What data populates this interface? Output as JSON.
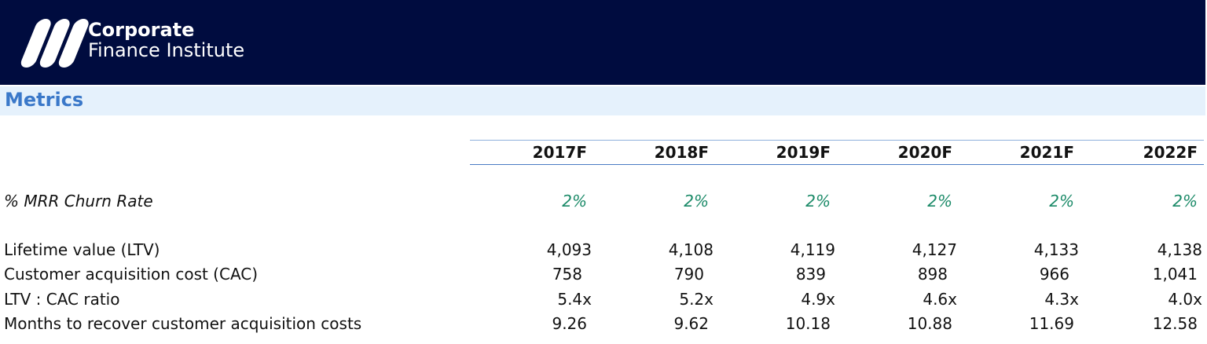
{
  "header": {
    "logo_line1": "Corporate",
    "logo_line2": "Finance Institute"
  },
  "section_title": "Metrics",
  "table": {
    "columns": [
      "2017F",
      "2018F",
      "2019F",
      "2020F",
      "2021F",
      "2022F"
    ],
    "rows": [
      {
        "label": "% MRR Churn Rate",
        "values": [
          "2%",
          "2%",
          "2%",
          "2%",
          "2%",
          "2%"
        ]
      },
      {
        "label": "Lifetime value (LTV)",
        "values": [
          "4,093",
          "4,108",
          "4,119",
          "4,127",
          "4,133",
          "4,138"
        ]
      },
      {
        "label": "Customer acquisition cost (CAC)",
        "values": [
          "758",
          "790",
          "839",
          "898",
          "966",
          "1,041"
        ]
      },
      {
        "label": "LTV : CAC ratio",
        "values": [
          "5.4x",
          "5.2x",
          "4.9x",
          "4.6x",
          "4.3x",
          "4.0x"
        ]
      },
      {
        "label": "Months to recover customer acquisition costs",
        "values": [
          "9.26",
          "9.62",
          "10.18",
          "10.88",
          "11.69",
          "12.58"
        ]
      }
    ]
  }
}
